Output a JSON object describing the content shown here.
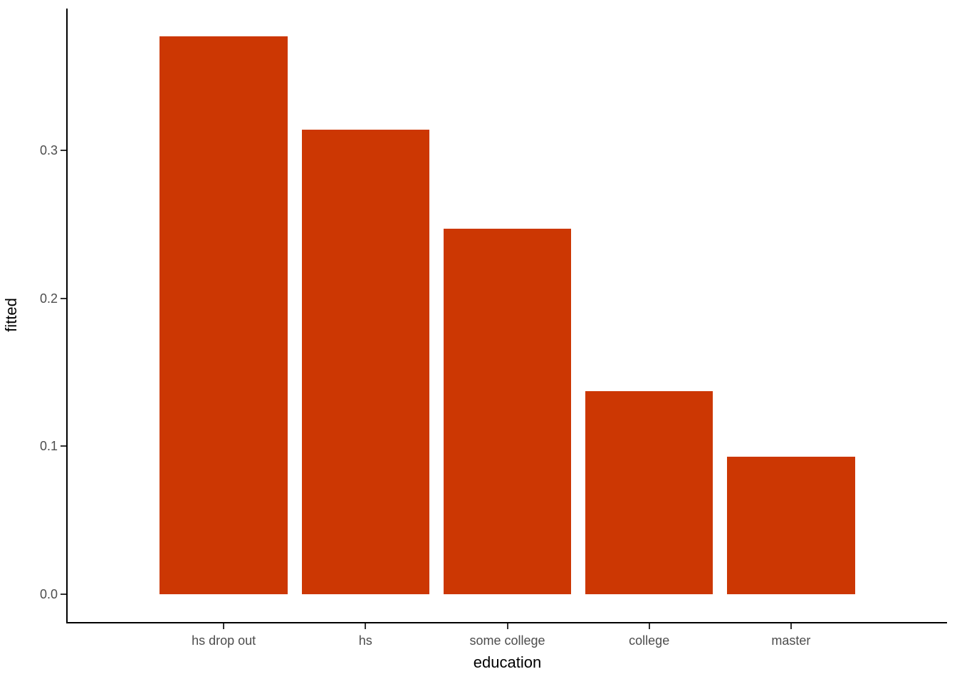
{
  "figure": {
    "background": "#FFFFFF",
    "bar_color": "#CC3703",
    "axis_line_color": "#000000",
    "tick_mark_color": "#333333",
    "tick_label_color": "#4D4D4D",
    "axis_title_color": "#000000"
  },
  "chart_data": {
    "type": "bar",
    "title": "",
    "categories": [
      "hs drop out",
      "hs",
      "some college",
      "college",
      "master"
    ],
    "values": [
      0.377,
      0.314,
      0.247,
      0.137,
      0.093
    ],
    "xlabel": "education",
    "ylabel": "fitted",
    "ylim": [
      -0.019,
      0.396
    ],
    "yticks": [
      0,
      0.1,
      0.2,
      0.3
    ],
    "ytick_labels": [
      "0.0",
      "0.1",
      "0.2",
      "0.3"
    ],
    "grid": false,
    "legend_position": "none",
    "bar_rel_width": 0.9,
    "x_axis_expand": 0.6
  }
}
